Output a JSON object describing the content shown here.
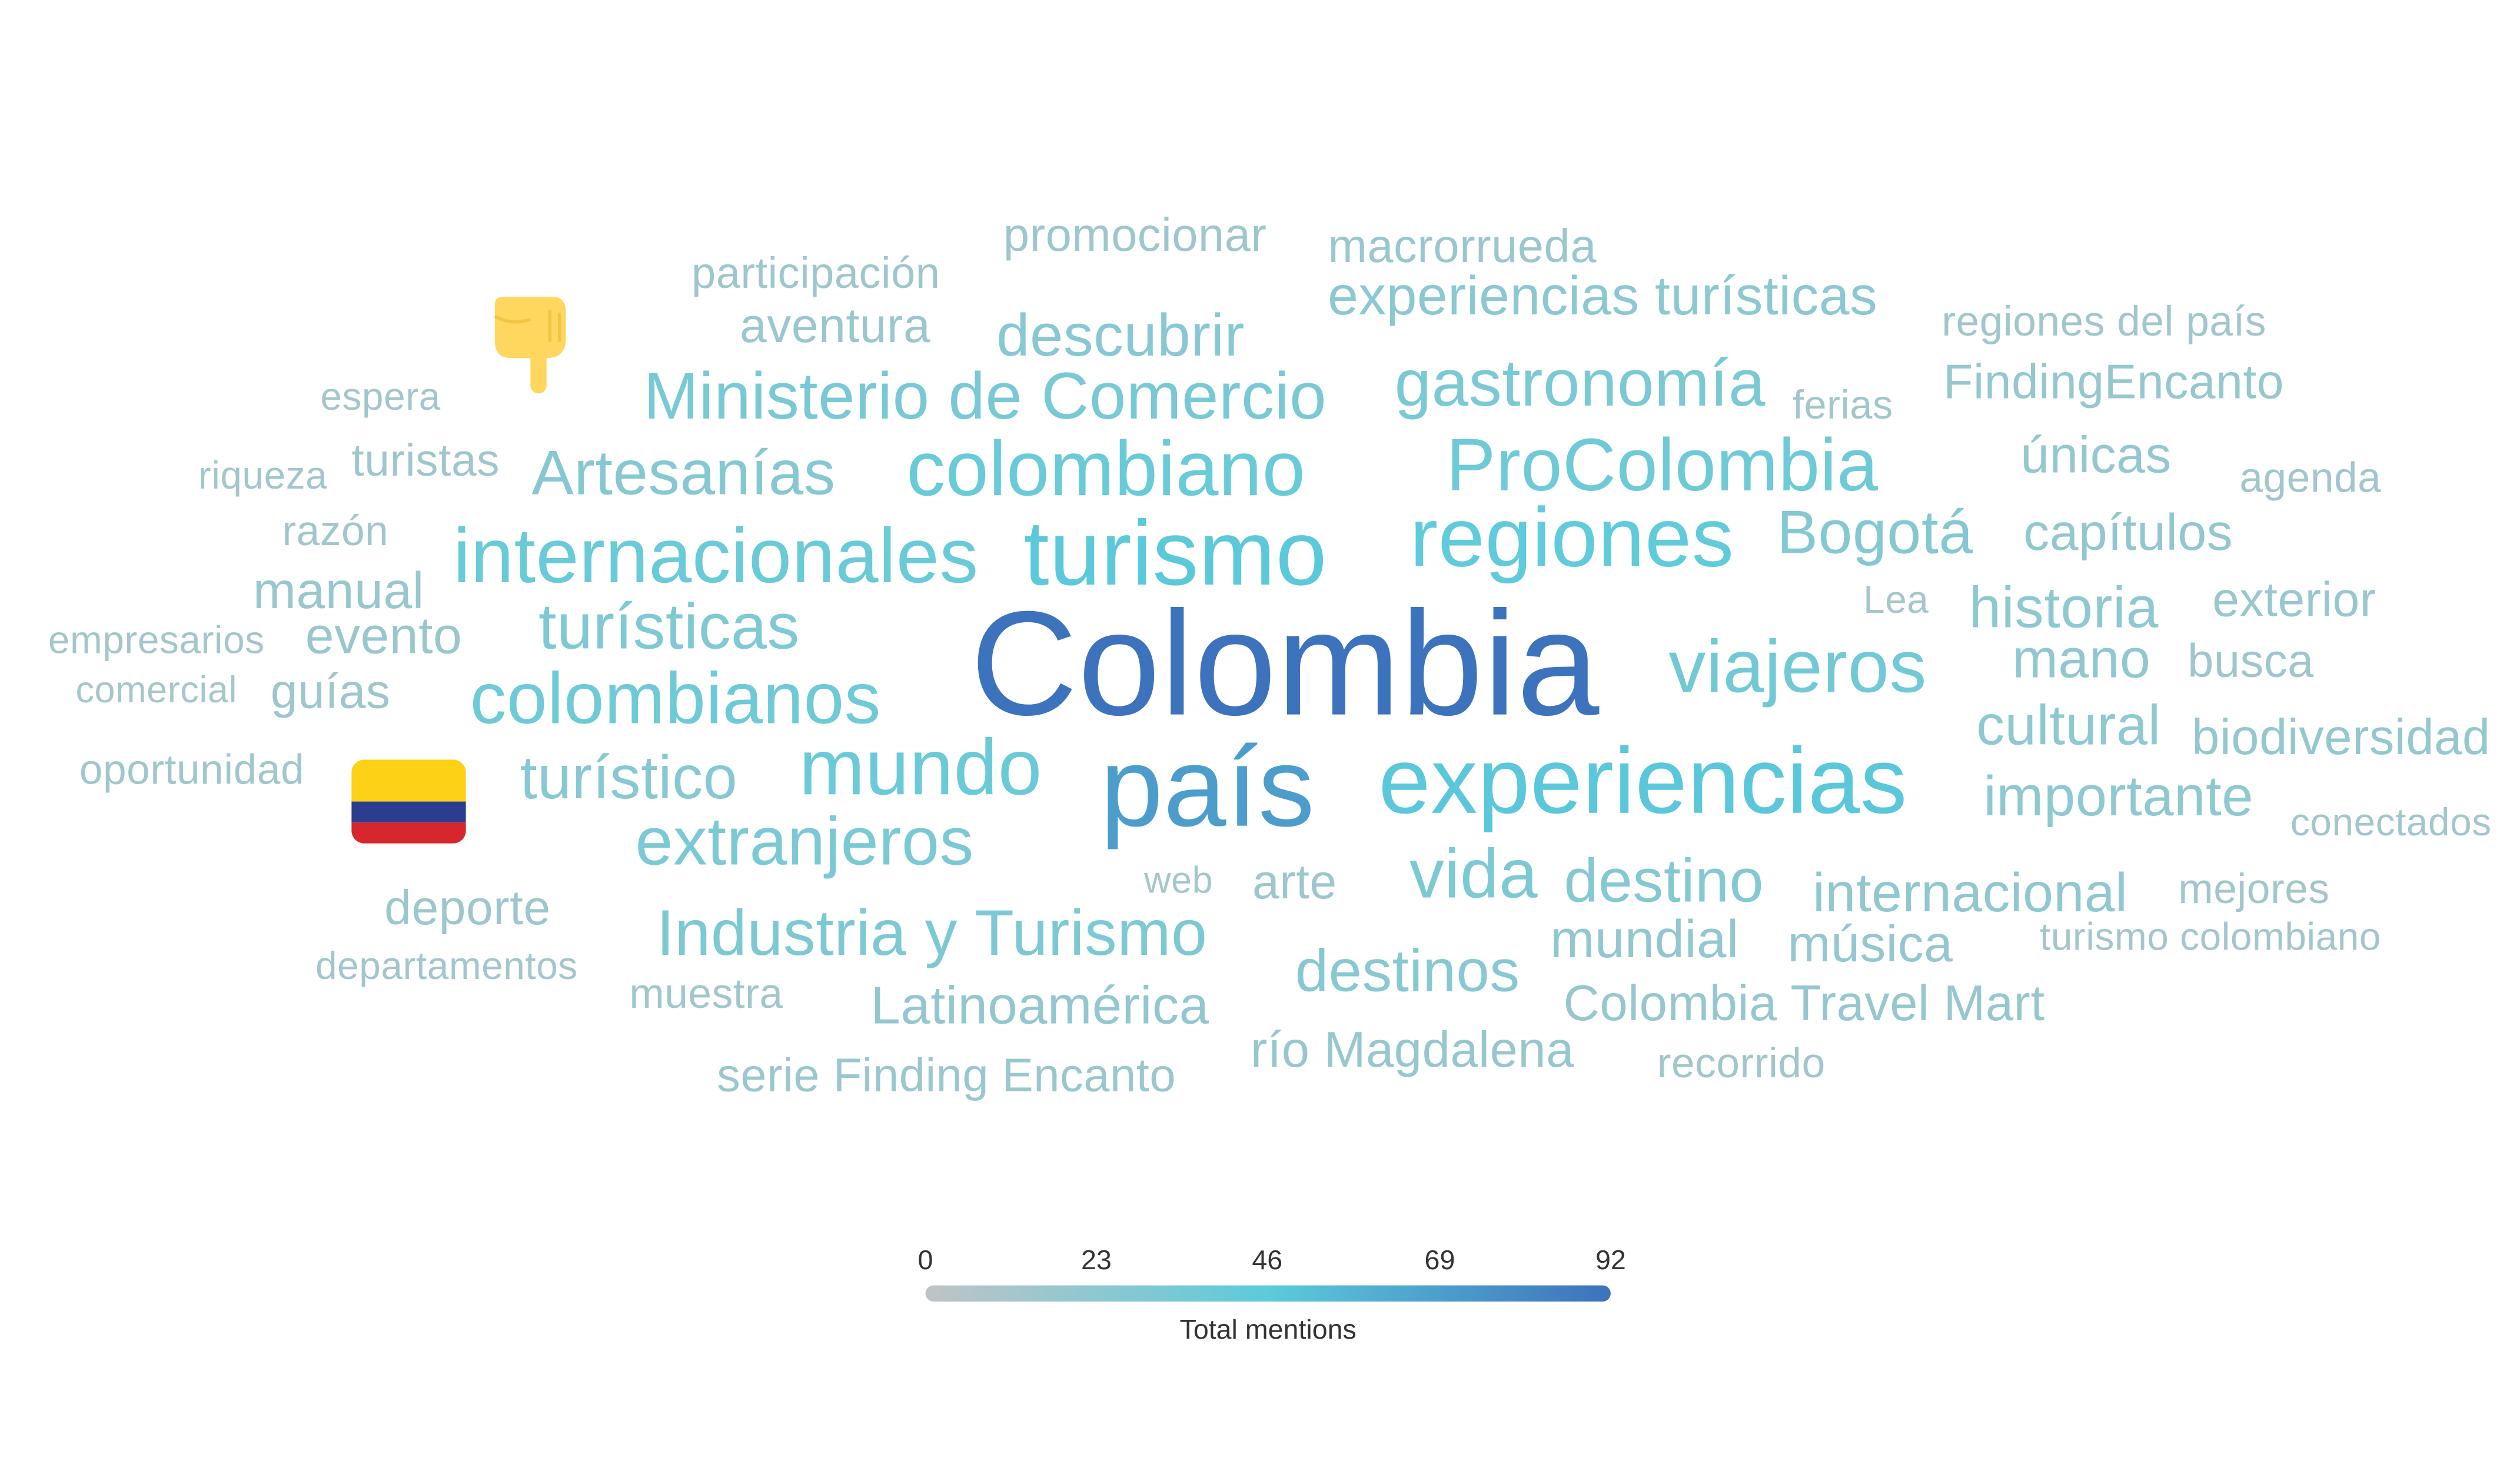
{
  "scale": {
    "min": 0,
    "max": 92,
    "ticks": [
      "0",
      "23",
      "46",
      "69",
      "92"
    ],
    "title": "Total mentions",
    "colors": [
      "#bfc4c6",
      "#5ccbdb",
      "#3d72bd"
    ]
  },
  "icons": {
    "pointing": "backhand-index-pointing-down",
    "flag": "flag-colombia"
  },
  "words": [
    {
      "text": "Colombia",
      "mentions": 92
    },
    {
      "text": "país",
      "mentions": 70
    },
    {
      "text": "experiencias",
      "mentions": 48
    },
    {
      "text": "turismo",
      "mentions": 47
    },
    {
      "text": "regiones",
      "mentions": 44
    },
    {
      "text": "internacionales",
      "mentions": 40
    },
    {
      "text": "colombiano",
      "mentions": 40
    },
    {
      "text": "mundo",
      "mentions": 39
    },
    {
      "text": "ProColombia",
      "mentions": 37
    },
    {
      "text": "colombianos",
      "mentions": 37
    },
    {
      "text": "viajeros",
      "mentions": 36
    },
    {
      "text": "Ministerio de Comercio",
      "mentions": 33
    },
    {
      "text": "extranjeros",
      "mentions": 32
    },
    {
      "text": "gastronomía",
      "mentions": 32
    },
    {
      "text": "vida",
      "mentions": 31
    },
    {
      "text": "Industria y Turismo",
      "mentions": 31
    },
    {
      "text": "turísticas",
      "mentions": 30
    },
    {
      "text": "Bogotá",
      "mentions": 28
    },
    {
      "text": "destino",
      "mentions": 28
    },
    {
      "text": "Artesanías",
      "mentions": 27
    },
    {
      "text": "turístico",
      "mentions": 26
    },
    {
      "text": "descubrir",
      "mentions": 26
    },
    {
      "text": "experiencias turísticas",
      "mentions": 24
    },
    {
      "text": "destinos",
      "mentions": 26
    },
    {
      "text": "importante",
      "mentions": 23
    },
    {
      "text": "historia",
      "mentions": 23
    },
    {
      "text": "cultural",
      "mentions": 23
    },
    {
      "text": "mano",
      "mentions": 22
    },
    {
      "text": "internacional",
      "mentions": 22
    },
    {
      "text": "capítulos",
      "mentions": 21
    },
    {
      "text": "mundial",
      "mentions": 21
    },
    {
      "text": "Latinoamérica",
      "mentions": 21
    },
    {
      "text": "únicas",
      "mentions": 20
    },
    {
      "text": "música",
      "mentions": 20
    },
    {
      "text": "biodiversidad",
      "mentions": 20
    },
    {
      "text": "río Magdalena",
      "mentions": 19
    },
    {
      "text": "Colombia Travel Mart",
      "mentions": 19
    },
    {
      "text": "FindingEncanto",
      "mentions": 19
    },
    {
      "text": "exterior",
      "mentions": 18
    },
    {
      "text": "evento",
      "mentions": 18
    },
    {
      "text": "manual",
      "mentions": 18
    },
    {
      "text": "serie Finding Encanto",
      "mentions": 17
    },
    {
      "text": "aventura",
      "mentions": 17
    },
    {
      "text": "macrorrueda",
      "mentions": 17
    },
    {
      "text": "promocionar",
      "mentions": 16
    },
    {
      "text": "guías",
      "mentions": 16
    },
    {
      "text": "deporte",
      "mentions": 16
    },
    {
      "text": "arte",
      "mentions": 16
    },
    {
      "text": "busca",
      "mentions": 15
    },
    {
      "text": "turistas",
      "mentions": 15
    },
    {
      "text": "participación",
      "mentions": 15
    },
    {
      "text": "regiones del país",
      "mentions": 14
    },
    {
      "text": "oportunidad",
      "mentions": 14
    },
    {
      "text": "agenda",
      "mentions": 14
    },
    {
      "text": "razón",
      "mentions": 14
    },
    {
      "text": "recorrido",
      "mentions": 14
    },
    {
      "text": "mejores",
      "mentions": 14
    },
    {
      "text": "muestra",
      "mentions": 14
    },
    {
      "text": "departamentos",
      "mentions": 13
    },
    {
      "text": "empresarios",
      "mentions": 13
    },
    {
      "text": "ferias",
      "mentions": 13
    },
    {
      "text": "espera",
      "mentions": 13
    },
    {
      "text": "riqueza",
      "mentions": 13
    },
    {
      "text": "conectados",
      "mentions": 13
    },
    {
      "text": "turismo colombiano",
      "mentions": 13
    },
    {
      "text": "Lea",
      "mentions": 12
    },
    {
      "text": "comercial",
      "mentions": 12
    },
    {
      "text": "web",
      "mentions": 12
    }
  ]
}
